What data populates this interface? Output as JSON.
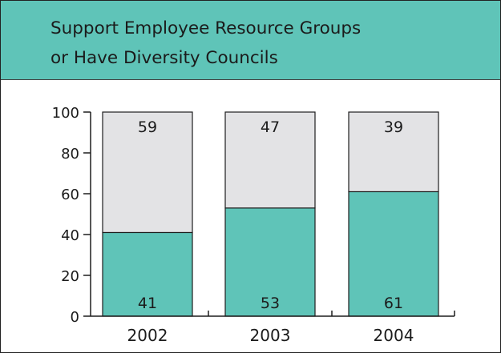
{
  "chart_data": {
    "type": "bar",
    "stacked": true,
    "title_lines": [
      "Support Employee Resource Groups",
      "or Have Diversity Councils"
    ],
    "categories": [
      "2002",
      "2003",
      "2004"
    ],
    "series": [
      {
        "values": [
          41,
          53,
          61
        ],
        "color": "#5fc4b8"
      },
      {
        "values": [
          59,
          47,
          39
        ],
        "color": "#e3e3e5"
      }
    ],
    "ylim": [
      0,
      100
    ],
    "yticks": [
      "0",
      "20",
      "40",
      "60",
      "80",
      "100"
    ],
    "legend": "none",
    "grid": false
  }
}
